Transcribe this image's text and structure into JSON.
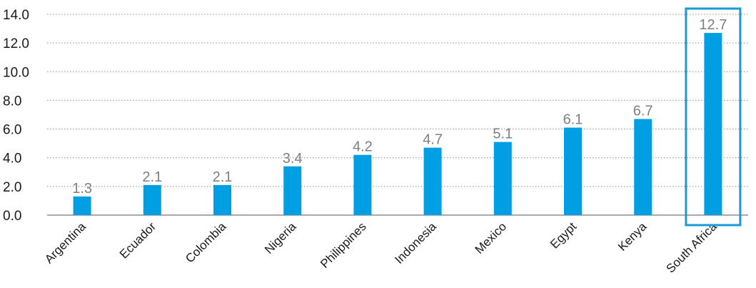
{
  "chart_data": {
    "type": "bar",
    "categories": [
      "Argentina",
      "Ecuador",
      "Colombia",
      "Nigeria",
      "Philippines",
      "Indonesia",
      "Mexico",
      "Egypt",
      "Kenya",
      "South Africa"
    ],
    "values": [
      1.3,
      2.1,
      2.1,
      3.4,
      4.2,
      4.7,
      5.1,
      6.1,
      6.7,
      12.7
    ],
    "value_labels": [
      "1.3",
      "2.1",
      "2.1",
      "3.4",
      "4.2",
      "4.7",
      "5.1",
      "6.1",
      "6.7",
      "12.7"
    ],
    "ylim": [
      0,
      14
    ],
    "y_ticks": [
      "0.0",
      "2.0",
      "4.0",
      "6.0",
      "8.0",
      "10.0",
      "12.0",
      "14.0"
    ],
    "grid": true,
    "highlighted_category": "South Africa",
    "colors": {
      "bar": "#009fe3",
      "highlight_box": "#1a9ad6",
      "gridline": "#8c8c8c",
      "data_label": "#7f7f7f"
    }
  }
}
